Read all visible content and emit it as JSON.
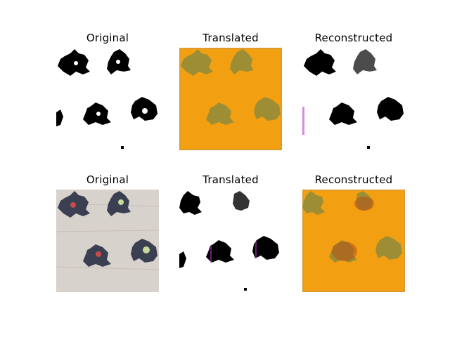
{
  "figure": {
    "rows": [
      {
        "panels": [
          {
            "title": "Original",
            "kind": "binary-white"
          },
          {
            "title": "Translated",
            "kind": "orange"
          },
          {
            "title": "Reconstructed",
            "kind": "binary-white"
          }
        ]
      },
      {
        "panels": [
          {
            "title": "Original",
            "kind": "fabric"
          },
          {
            "title": "Translated",
            "kind": "binary-white"
          },
          {
            "title": "Reconstructed",
            "kind": "orange"
          }
        ]
      }
    ]
  },
  "colors": {
    "orange_bg": "#f2a012",
    "orange_motif": "#8f8a3a",
    "fabric_bg": "#d8d2cd",
    "fabric_motif": "#3a3f52",
    "flower_red": "#c94a4a",
    "flower_green": "#c9d89a",
    "ink": "#000000"
  }
}
